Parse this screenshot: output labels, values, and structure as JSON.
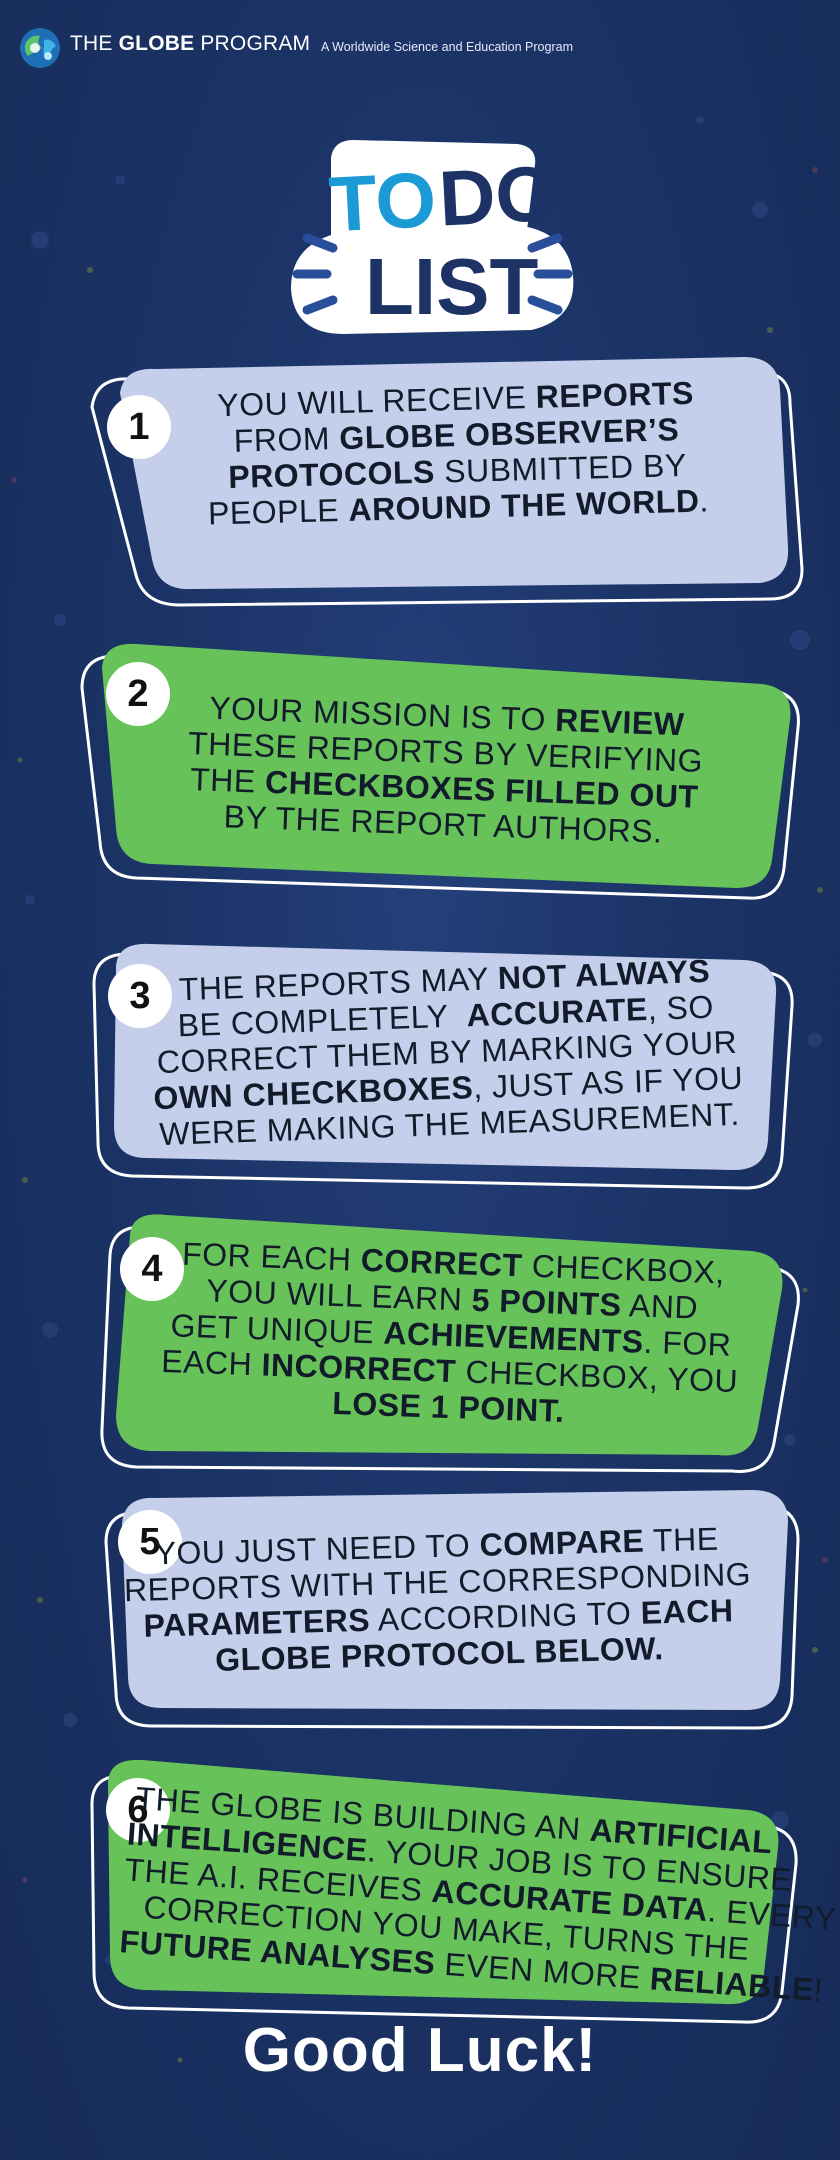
{
  "header": {
    "brand_pre": "THE ",
    "brand_bold": "GLOBE",
    "brand_post": " PROGRAM",
    "tagline": "A Worldwide Science and Education Program"
  },
  "title": {
    "to": "TO",
    "do": "DO",
    "list": "LIST"
  },
  "colors": {
    "background": "#1b3366",
    "card_light": "#c5cfeb",
    "card_green": "#67c25a",
    "title_blue": "#1b9ad6",
    "title_navy": "#1d3366"
  },
  "steps": [
    {
      "number": "1",
      "lines": [
        [
          {
            "t": "YOU WILL RECEIVE "
          },
          {
            "t": "REPORTS",
            "b": true
          }
        ],
        [
          {
            "t": "FROM "
          },
          {
            "t": "GLOBE OBSERVER’S",
            "b": true
          }
        ],
        [
          {
            "t": "PROTOCOLS",
            "b": true
          },
          {
            "t": " SUBMITTED BY"
          }
        ],
        [
          {
            "t": "PEOPLE "
          },
          {
            "t": "AROUND THE WORLD",
            "b": true
          },
          {
            "t": "."
          }
        ]
      ]
    },
    {
      "number": "2",
      "lines": [
        [
          {
            "t": "YOUR MISSION IS TO "
          },
          {
            "t": "REVIEW",
            "b": true
          }
        ],
        [
          {
            "t": "THESE REPORTS BY VERIFYING"
          }
        ],
        [
          {
            "t": "THE "
          },
          {
            "t": "CHECKBOXES FILLED OUT",
            "b": true
          }
        ],
        [
          {
            "t": "BY THE REPORT AUTHORS."
          }
        ]
      ]
    },
    {
      "number": "3",
      "lines": [
        [
          {
            "t": "THE REPORTS MAY "
          },
          {
            "t": "NOT ALWAYS",
            "b": true
          }
        ],
        [
          {
            "t": "BE COMPLETELY  "
          },
          {
            "t": "ACCURATE",
            "b": true
          },
          {
            "t": ", SO"
          }
        ],
        [
          {
            "t": "CORRECT THEM BY MARKING YOUR"
          }
        ],
        [
          {
            "t": "OWN CHECKBOXES",
            "b": true
          },
          {
            "t": ", JUST AS IF YOU"
          }
        ],
        [
          {
            "t": "WERE MAKING THE MEASUREMENT."
          }
        ]
      ]
    },
    {
      "number": "4",
      "lines": [
        [
          {
            "t": "FOR EACH "
          },
          {
            "t": "CORRECT",
            "b": true
          },
          {
            "t": " CHECKBOX,"
          }
        ],
        [
          {
            "t": "YOU WILL EARN "
          },
          {
            "t": "5 POINTS",
            "b": true
          },
          {
            "t": " AND"
          }
        ],
        [
          {
            "t": "GET UNIQUE "
          },
          {
            "t": "ACHIEVEMENTS",
            "b": true
          },
          {
            "t": ". FOR"
          }
        ],
        [
          {
            "t": "EACH "
          },
          {
            "t": "INCORRECT",
            "b": true
          },
          {
            "t": " CHECKBOX, YOU"
          }
        ],
        [
          {
            "t": "LOSE 1 POINT.",
            "b": true
          }
        ]
      ]
    },
    {
      "number": "5",
      "lines": [
        [
          {
            "t": "YOU JUST NEED TO "
          },
          {
            "t": "COMPARE",
            "b": true
          },
          {
            "t": " THE"
          }
        ],
        [
          {
            "t": "REPORTS WITH THE CORRESPONDING"
          }
        ],
        [
          {
            "t": "PARAMETERS",
            "b": true
          },
          {
            "t": " ACCORDING TO "
          },
          {
            "t": "EACH",
            "b": true
          }
        ],
        [
          {
            "t": "GLOBE PROTOCOL BELOW.",
            "b": true
          }
        ]
      ]
    },
    {
      "number": "6",
      "lines": [
        [
          {
            "t": "THE GLOBE IS BUILDING AN "
          },
          {
            "t": "ARTIFICIAL",
            "b": true
          }
        ],
        [
          {
            "t": "INTELLIGENCE",
            "b": true
          },
          {
            "t": ". YOUR JOB IS TO ENSURE"
          }
        ],
        [
          {
            "t": "THE A.I. RECEIVES "
          },
          {
            "t": "ACCURATE DATA",
            "b": true
          },
          {
            "t": ". EVERY"
          }
        ],
        [
          {
            "t": "CORRECTION YOU MAKE, TURNS THE"
          }
        ],
        [
          {
            "t": "FUTURE ANALYSES",
            "b": true
          },
          {
            "t": " EVEN MORE "
          },
          {
            "t": "RELIABLE",
            "b": true
          },
          {
            "t": "!"
          }
        ]
      ]
    }
  ],
  "footer": {
    "text": "Good Luck!"
  }
}
